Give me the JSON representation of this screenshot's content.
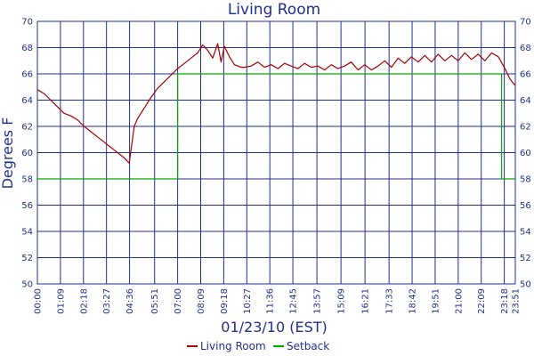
{
  "chart_data": {
    "type": "line",
    "title": "Living Room",
    "xlabel": "01/23/10 (EST)",
    "ylabel": "Degrees F",
    "ylim": [
      50,
      70
    ],
    "yticks": [
      50,
      52,
      54,
      56,
      58,
      60,
      62,
      64,
      66,
      68,
      70
    ],
    "xlim_minutes": [
      0,
      1431
    ],
    "xticks": [
      "00:00",
      "01:09",
      "02:18",
      "03:27",
      "04:36",
      "05:51",
      "07:00",
      "08:09",
      "09:18",
      "10:27",
      "11:36",
      "12:45",
      "13:57",
      "15:09",
      "16:21",
      "17:33",
      "18:42",
      "19:51",
      "21:00",
      "22:09",
      "23:18",
      "23:51"
    ],
    "grid": true,
    "legend": "bottom",
    "series": [
      {
        "name": "Living Room",
        "color": "#aa0000",
        "x_minutes": [
          0,
          20,
          40,
          60,
          80,
          100,
          120,
          140,
          160,
          180,
          200,
          220,
          240,
          260,
          275,
          290,
          300,
          320,
          340,
          360,
          380,
          400,
          420,
          435,
          450,
          465,
          480,
          495,
          510,
          525,
          540,
          550,
          560,
          575,
          590,
          600,
          610,
          620,
          640,
          660,
          680,
          700,
          720,
          740,
          760,
          780,
          800,
          820,
          840,
          860,
          880,
          900,
          920,
          940,
          960,
          980,
          1000,
          1020,
          1040,
          1060,
          1080,
          1100,
          1120,
          1140,
          1160,
          1180,
          1200,
          1220,
          1240,
          1260,
          1280,
          1300,
          1320,
          1340,
          1360,
          1380,
          1400,
          1415,
          1431
        ],
        "values": [
          64.8,
          64.5,
          64.0,
          63.5,
          63.0,
          62.8,
          62.5,
          62.0,
          61.6,
          61.2,
          60.8,
          60.4,
          60.0,
          59.6,
          59.2,
          62.0,
          62.6,
          63.4,
          64.2,
          64.9,
          65.4,
          65.9,
          66.4,
          66.7,
          67.0,
          67.3,
          67.6,
          68.2,
          67.8,
          67.2,
          68.3,
          66.9,
          68.1,
          67.3,
          66.7,
          66.6,
          66.5,
          66.5,
          66.6,
          66.9,
          66.5,
          66.7,
          66.4,
          66.8,
          66.6,
          66.4,
          66.8,
          66.5,
          66.6,
          66.3,
          66.7,
          66.4,
          66.6,
          66.9,
          66.3,
          66.7,
          66.3,
          66.6,
          67.0,
          66.5,
          67.2,
          66.8,
          67.3,
          66.9,
          67.4,
          66.9,
          67.5,
          67.0,
          67.4,
          67.0,
          67.6,
          67.1,
          67.5,
          67.0,
          67.6,
          67.3,
          66.4,
          65.6,
          65.1
        ]
      },
      {
        "name": "Setback",
        "color": "#00aa00",
        "x_minutes": [
          0,
          420,
          420,
          1390,
          1390,
          1431
        ],
        "values": [
          58,
          58,
          66,
          66,
          58,
          58
        ]
      }
    ]
  }
}
